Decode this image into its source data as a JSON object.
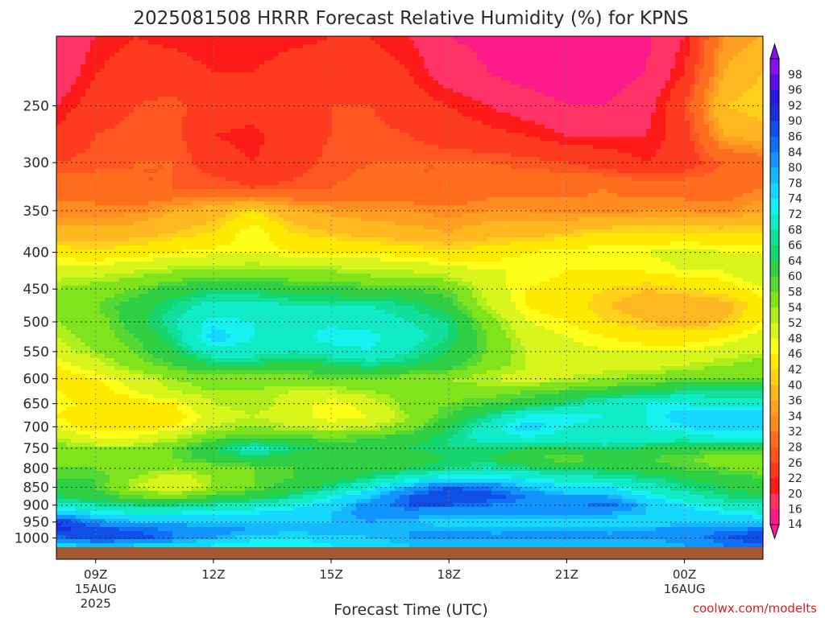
{
  "chart_data": {
    "type": "heatmap",
    "title": "2025081508 HRRR Forecast Relative Humidity (%) for KPNS",
    "xlabel": "Forecast Time (UTC)",
    "ylabel": "",
    "credit": "coolwx.com/modelts",
    "y_scale": "log",
    "y_inverted": true,
    "ylim": [
      1030,
      200
    ],
    "xlim": [
      "2025-08-15 08Z",
      "2025-08-16 02Z"
    ],
    "x_ticks": [
      {
        "label": "09Z",
        "sublabel": "15AUG",
        "sublabel2": "2025",
        "hour": 9
      },
      {
        "label": "12Z",
        "sublabel": "",
        "sublabel2": "",
        "hour": 12
      },
      {
        "label": "15Z",
        "sublabel": "",
        "sublabel2": "",
        "hour": 15
      },
      {
        "label": "18Z",
        "sublabel": "",
        "sublabel2": "",
        "hour": 18
      },
      {
        "label": "21Z",
        "sublabel": "",
        "sublabel2": "",
        "hour": 21
      },
      {
        "label": "00Z",
        "sublabel": "16AUG",
        "sublabel2": "",
        "hour": 24
      }
    ],
    "y_ticks": [
      250,
      300,
      350,
      400,
      450,
      500,
      550,
      600,
      650,
      700,
      750,
      800,
      850,
      900,
      950,
      1000
    ],
    "colorbar": {
      "levels": [
        14,
        16,
        20,
        22,
        26,
        28,
        32,
        34,
        36,
        40,
        42,
        46,
        48,
        52,
        54,
        58,
        60,
        64,
        66,
        68,
        72,
        74,
        78,
        80,
        84,
        86,
        90,
        92,
        96,
        98
      ],
      "colors": [
        "#ff1a8c",
        "#ff3366",
        "#ff1a1a",
        "#ff3b1f",
        "#ff5520",
        "#ff6e1e",
        "#ff8a1f",
        "#ffa020",
        "#ffb820",
        "#ffd11a",
        "#ffea00",
        "#ffff1a",
        "#d8f51c",
        "#b0ee1c",
        "#80e41c",
        "#55d932",
        "#2ecf42",
        "#14d66e",
        "#10e09c",
        "#10ecc8",
        "#16f2f2",
        "#14d8ff",
        "#14b8ff",
        "#1294ff",
        "#1070f5",
        "#104ee8",
        "#1830d8",
        "#2a18dc",
        "#5a0ee6",
        "#8a10f0"
      ]
    },
    "surface_color": "#a55a35",
    "grid": true,
    "hours": [
      8,
      9,
      10,
      11,
      12,
      13,
      14,
      15,
      16,
      17,
      18,
      19,
      20,
      21,
      22,
      23,
      24,
      25,
      26
    ],
    "levels": [
      200,
      225,
      250,
      275,
      300,
      325,
      350,
      375,
      400,
      425,
      450,
      475,
      500,
      525,
      550,
      575,
      600,
      625,
      650,
      675,
      700,
      725,
      750,
      775,
      800,
      825,
      850,
      875,
      900,
      925,
      950,
      975,
      1000,
      1020
    ],
    "rh": [
      [
        16,
        20,
        22,
        21,
        20,
        20,
        21,
        22,
        22,
        20,
        16,
        15,
        14,
        14,
        14,
        15,
        20,
        34,
        36
      ],
      [
        17,
        22,
        24,
        24,
        22,
        22,
        24,
        24,
        24,
        22,
        18,
        16,
        14,
        14,
        14,
        16,
        22,
        36,
        40
      ],
      [
        20,
        24,
        26,
        27,
        24,
        24,
        25,
        26,
        26,
        24,
        22,
        20,
        18,
        16,
        16,
        18,
        26,
        40,
        42
      ],
      [
        23,
        26,
        27,
        27,
        22,
        21,
        24,
        26,
        27,
        26,
        24,
        23,
        22,
        20,
        20,
        20,
        24,
        36,
        38
      ],
      [
        26,
        27,
        28,
        28,
        24,
        22,
        24,
        27,
        28,
        28,
        28,
        28,
        27,
        26,
        24,
        22,
        24,
        28,
        30
      ],
      [
        30,
        30,
        28,
        28,
        28,
        26,
        27,
        28,
        29,
        28,
        28,
        30,
        31,
        31,
        32,
        30,
        30,
        30,
        32
      ],
      [
        33,
        33,
        33,
        36,
        38,
        42,
        37,
        35,
        34,
        34,
        33,
        34,
        34,
        33,
        33,
        34,
        34,
        33,
        36
      ],
      [
        37,
        37,
        38,
        40,
        42,
        48,
        42,
        40,
        38,
        37,
        36,
        38,
        38,
        40,
        42,
        42,
        42,
        42,
        42
      ],
      [
        44,
        43,
        44,
        46,
        47,
        48,
        46,
        46,
        46,
        44,
        43,
        44,
        46,
        47,
        48,
        48,
        50,
        48,
        48
      ],
      [
        50,
        50,
        52,
        54,
        54,
        55,
        54,
        54,
        52,
        52,
        50,
        48,
        48,
        46,
        46,
        46,
        48,
        48,
        52
      ],
      [
        54,
        56,
        58,
        62,
        64,
        64,
        62,
        62,
        60,
        60,
        58,
        50,
        46,
        44,
        42,
        40,
        42,
        44,
        48
      ],
      [
        56,
        58,
        62,
        66,
        70,
        70,
        68,
        68,
        68,
        66,
        62,
        52,
        46,
        44,
        40,
        38,
        36,
        38,
        44
      ],
      [
        54,
        56,
        62,
        68,
        73,
        72,
        70,
        71,
        70,
        68,
        66,
        56,
        48,
        46,
        42,
        40,
        38,
        40,
        46
      ],
      [
        52,
        56,
        60,
        66,
        76,
        72,
        70,
        74,
        73,
        70,
        66,
        58,
        50,
        48,
        46,
        44,
        44,
        46,
        50
      ],
      [
        50,
        54,
        58,
        64,
        70,
        70,
        68,
        70,
        72,
        68,
        64,
        58,
        52,
        50,
        48,
        48,
        48,
        50,
        52
      ],
      [
        46,
        50,
        56,
        60,
        64,
        64,
        62,
        64,
        66,
        64,
        62,
        56,
        52,
        50,
        50,
        50,
        52,
        54,
        56
      ],
      [
        44,
        46,
        50,
        54,
        56,
        56,
        56,
        58,
        58,
        56,
        54,
        52,
        50,
        52,
        54,
        56,
        58,
        58,
        58
      ],
      [
        46,
        44,
        48,
        52,
        54,
        54,
        52,
        52,
        54,
        56,
        56,
        56,
        58,
        60,
        62,
        64,
        66,
        66,
        66
      ],
      [
        48,
        44,
        44,
        46,
        52,
        54,
        50,
        46,
        50,
        56,
        58,
        60,
        62,
        66,
        70,
        72,
        72,
        70,
        70
      ],
      [
        46,
        42,
        42,
        44,
        50,
        52,
        50,
        46,
        48,
        54,
        60,
        66,
        72,
        74,
        72,
        72,
        76,
        78,
        78
      ],
      [
        48,
        44,
        44,
        46,
        52,
        54,
        52,
        50,
        52,
        56,
        64,
        70,
        76,
        72,
        70,
        72,
        74,
        76,
        76
      ],
      [
        52,
        48,
        48,
        52,
        58,
        60,
        60,
        58,
        60,
        62,
        66,
        70,
        72,
        70,
        72,
        70,
        70,
        72,
        72
      ],
      [
        56,
        54,
        54,
        58,
        64,
        70,
        66,
        62,
        62,
        64,
        66,
        66,
        64,
        64,
        66,
        64,
        62,
        62,
        60
      ],
      [
        58,
        56,
        56,
        58,
        62,
        64,
        62,
        60,
        60,
        62,
        64,
        64,
        60,
        58,
        60,
        60,
        58,
        56,
        56
      ],
      [
        58,
        58,
        56,
        54,
        56,
        58,
        60,
        60,
        62,
        64,
        66,
        68,
        66,
        64,
        64,
        62,
        60,
        58,
        56
      ],
      [
        60,
        60,
        54,
        50,
        54,
        58,
        60,
        62,
        66,
        70,
        74,
        74,
        72,
        70,
        68,
        66,
        64,
        62,
        60
      ],
      [
        62,
        60,
        52,
        48,
        54,
        58,
        62,
        66,
        72,
        80,
        86,
        84,
        78,
        74,
        74,
        70,
        66,
        64,
        62
      ],
      [
        64,
        62,
        58,
        56,
        60,
        62,
        66,
        72,
        78,
        86,
        90,
        88,
        84,
        80,
        80,
        74,
        70,
        66,
        64
      ],
      [
        70,
        68,
        66,
        66,
        68,
        70,
        72,
        76,
        82,
        86,
        86,
        84,
        82,
        82,
        86,
        78,
        74,
        70,
        68
      ],
      [
        78,
        74,
        72,
        72,
        74,
        74,
        76,
        78,
        82,
        82,
        80,
        80,
        80,
        80,
        80,
        78,
        76,
        74,
        72
      ],
      [
        90,
        82,
        78,
        78,
        78,
        78,
        78,
        78,
        80,
        78,
        76,
        76,
        76,
        76,
        76,
        76,
        76,
        76,
        76
      ],
      [
        92,
        88,
        86,
        84,
        82,
        80,
        80,
        80,
        80,
        80,
        80,
        80,
        80,
        80,
        80,
        80,
        82,
        84,
        86
      ],
      [
        84,
        90,
        88,
        84,
        80,
        76,
        74,
        76,
        78,
        80,
        80,
        80,
        80,
        80,
        80,
        80,
        82,
        86,
        88
      ],
      [
        76,
        80,
        78,
        76,
        74,
        72,
        72,
        74,
        76,
        78,
        78,
        78,
        78,
        78,
        78,
        78,
        80,
        84,
        86
      ]
    ]
  }
}
